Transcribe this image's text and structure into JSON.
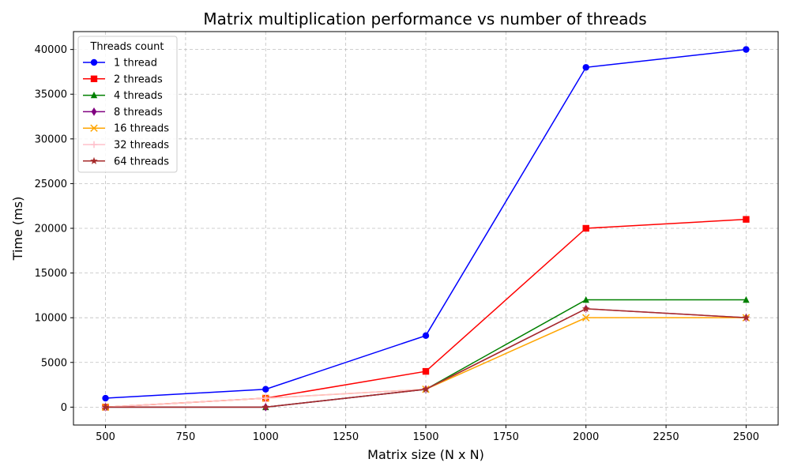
{
  "chart_data": {
    "type": "line",
    "title": "Matrix multiplication performance vs number of threads",
    "xlabel": "Matrix size (N x N)",
    "ylabel": "Time (ms)",
    "x": [
      500,
      1000,
      1500,
      2000,
      2500
    ],
    "xlim": [
      400,
      2600
    ],
    "ylim": [
      -2000,
      42000
    ],
    "xticks": [
      500,
      750,
      1000,
      1250,
      1500,
      1750,
      2000,
      2250,
      2500
    ],
    "yticks": [
      0,
      5000,
      10000,
      15000,
      20000,
      25000,
      30000,
      35000,
      40000
    ],
    "grid": true,
    "legend": {
      "title": "Threads count",
      "placement": "top-left"
    },
    "series": [
      {
        "name": "1 thread",
        "color": "#0000ff",
        "marker": "circle",
        "values": [
          1000,
          2000,
          8000,
          38000,
          40000
        ]
      },
      {
        "name": "2 threads",
        "color": "#ff0000",
        "marker": "square",
        "values": [
          0,
          1000,
          4000,
          20000,
          21000
        ]
      },
      {
        "name": "4 threads",
        "color": "#008000",
        "marker": "triangle",
        "values": [
          0,
          0,
          2000,
          12000,
          12000
        ]
      },
      {
        "name": "8 threads",
        "color": "#800080",
        "marker": "diamond",
        "values": [
          0,
          0,
          2000,
          11000,
          10000
        ]
      },
      {
        "name": "16 threads",
        "color": "#ffa500",
        "marker": "x",
        "values": [
          0,
          1000,
          2000,
          10000,
          10000
        ]
      },
      {
        "name": "32 threads",
        "color": "#ffc0cb",
        "marker": "plus",
        "values": [
          0,
          1000,
          2000,
          11000,
          10000
        ]
      },
      {
        "name": "64 threads",
        "color": "#a52a2a",
        "marker": "star",
        "values": [
          0,
          0,
          2000,
          11000,
          10000
        ]
      }
    ]
  }
}
